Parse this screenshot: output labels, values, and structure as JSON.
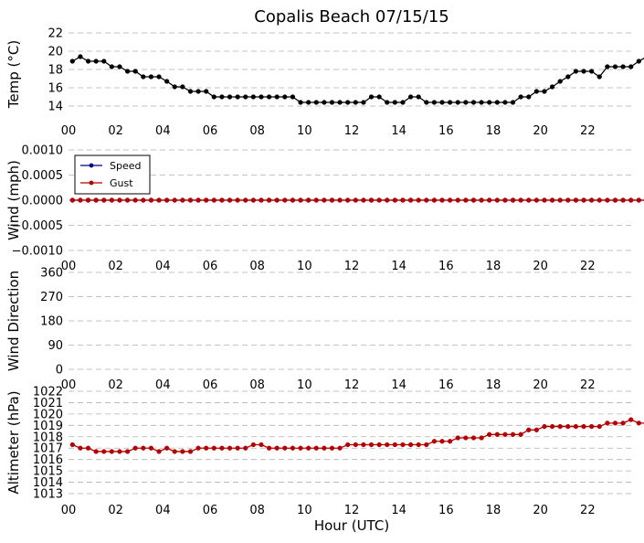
{
  "chart_data": {
    "title": "Copalis Beach 07/15/15",
    "xlabel": "Hour (UTC)",
    "x_ticks": [
      "00",
      "02",
      "04",
      "06",
      "08",
      "10",
      "12",
      "14",
      "16",
      "18",
      "20",
      "22"
    ],
    "x_range_hours": [
      0,
      24
    ],
    "grid": "dashed horizontal",
    "panels": [
      {
        "type": "line",
        "ylabel": "Temp (°C)",
        "ylim": [
          13,
          22
        ],
        "yticks": [
          14,
          16,
          18,
          20,
          22
        ],
        "ytick_labels": [
          "14",
          "16",
          "18",
          "20",
          "22"
        ],
        "series": [
          {
            "color": "#000000",
            "interval_minutes": 20,
            "start": "00:10",
            "values": [
              18.9,
              19.4,
              18.9,
              18.9,
              18.9,
              18.3,
              18.3,
              17.8,
              17.8,
              17.2,
              17.2,
              17.2,
              16.7,
              16.1,
              16.1,
              15.6,
              15.6,
              15.6,
              15.0,
              15.0,
              15.0,
              15.0,
              15.0,
              15.0,
              15.0,
              15.0,
              15.0,
              15.0,
              15.0,
              14.4,
              14.4,
              14.4,
              14.4,
              14.4,
              14.4,
              14.4,
              14.4,
              14.4,
              15.0,
              15.0,
              14.4,
              14.4,
              14.4,
              15.0,
              15.0,
              14.4,
              14.4,
              14.4,
              14.4,
              14.4,
              14.4,
              14.4,
              14.4,
              14.4,
              14.4,
              14.4,
              14.4,
              15.0,
              15.0,
              15.6,
              15.6,
              16.1,
              16.7,
              17.2,
              17.8,
              17.8,
              17.8,
              17.2,
              18.3,
              18.3,
              18.3,
              18.3,
              18.9,
              19.4,
              19.4,
              19.4,
              20.0,
              20.0,
              20.6,
              20.0,
              20.0,
              20.6,
              20.6,
              20.6,
              20.6,
              20.6,
              20.6,
              20.6,
              20.6,
              20.6,
              20.6,
              20.0,
              20.0,
              20.0,
              20.0,
              20.0,
              19.4
            ]
          }
        ]
      },
      {
        "type": "line",
        "ylabel": "Wind (mph)",
        "ylim": [
          -0.001,
          0.001
        ],
        "yticks": [
          -0.001,
          -0.0005,
          0,
          0.0005,
          0.001
        ],
        "ytick_labels": [
          "−0.0010",
          "−0.0005",
          "0.0000",
          "0.0005",
          "0.0010"
        ],
        "legend": {
          "placement": "upper-left",
          "entries": [
            "Speed",
            "Gust"
          ]
        },
        "series": [
          {
            "name": "Speed",
            "color": "#000080",
            "interval_minutes": 20,
            "start": "00:10",
            "constant_value": 0,
            "count": 97
          },
          {
            "name": "Gust",
            "color": "#b20000",
            "interval_minutes": 20,
            "start": "00:10",
            "constant_value": 0,
            "count": 97
          }
        ]
      },
      {
        "type": "scatter",
        "ylabel": "Wind Direction",
        "ylim": [
          0,
          360
        ],
        "yticks": [
          0,
          90,
          180,
          270,
          360
        ],
        "ytick_labels": [
          "0",
          "90",
          "180",
          "270",
          "360"
        ],
        "series": []
      },
      {
        "type": "line",
        "ylabel": "Altimeter (hPa)",
        "ylim": [
          1013,
          1022
        ],
        "yticks": [
          1013,
          1014,
          1015,
          1016,
          1017,
          1018,
          1019,
          1020,
          1021,
          1022
        ],
        "ytick_labels": [
          "1013",
          "1014",
          "1015",
          "1016",
          "1017",
          "1018",
          "1019",
          "1020",
          "1021",
          "1022"
        ],
        "series": [
          {
            "color": "#b20000",
            "interval_minutes": 20,
            "start": "00:10",
            "values": [
              1017.3,
              1017.0,
              1017.0,
              1016.7,
              1016.7,
              1016.7,
              1016.7,
              1016.7,
              1017.0,
              1017.0,
              1017.0,
              1016.7,
              1017.0,
              1016.7,
              1016.7,
              1016.7,
              1017.0,
              1017.0,
              1017.0,
              1017.0,
              1017.0,
              1017.0,
              1017.0,
              1017.3,
              1017.3,
              1017.0,
              1017.0,
              1017.0,
              1017.0,
              1017.0,
              1017.0,
              1017.0,
              1017.0,
              1017.0,
              1017.0,
              1017.3,
              1017.3,
              1017.3,
              1017.3,
              1017.3,
              1017.3,
              1017.3,
              1017.3,
              1017.3,
              1017.3,
              1017.3,
              1017.6,
              1017.6,
              1017.6,
              1017.9,
              1017.9,
              1017.9,
              1017.9,
              1018.2,
              1018.2,
              1018.2,
              1018.2,
              1018.2,
              1018.6,
              1018.6,
              1018.9,
              1018.9,
              1018.9,
              1018.9,
              1018.9,
              1018.9,
              1018.9,
              1018.9,
              1019.2,
              1019.2,
              1019.2,
              1019.5,
              1019.2,
              1019.2,
              1019.5,
              1019.5,
              1019.2,
              1019.5,
              1019.5,
              1019.5,
              1019.5,
              1019.5,
              1019.5,
              1019.5,
              1019.5,
              1019.2,
              1019.5,
              1019.5,
              1019.5,
              1019.5,
              1019.5,
              1019.5,
              1019.2,
              1019.5,
              1019.5,
              1019.5,
              1019.5,
              1019.5
            ]
          }
        ]
      }
    ]
  }
}
